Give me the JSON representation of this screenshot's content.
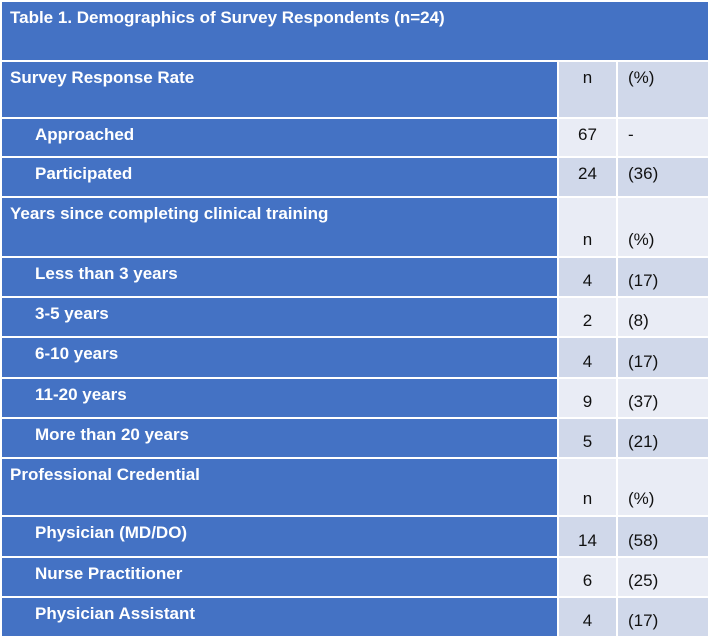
{
  "title": "Table 1. Demographics of Survey Respondents (n=24)",
  "sections": [
    {
      "heading": "Survey Response Rate",
      "n_header": "n",
      "pct_header": "(%)",
      "rows": [
        {
          "label": "Approached",
          "n": "67",
          "pct": "-"
        },
        {
          "label": "Participated",
          "n": "24",
          "pct": "(36)"
        }
      ]
    },
    {
      "heading": "Years since completing clinical training",
      "n_header": "n",
      "pct_header": "(%)",
      "rows": [
        {
          "label": "Less than 3 years",
          "n": "4",
          "pct": "(17)"
        },
        {
          "label": "3-5 years",
          "n": "2",
          "pct": "(8)"
        },
        {
          "label": "6-10 years",
          "n": "4",
          "pct": "(17)"
        },
        {
          "label": "11-20 years",
          "n": "9",
          "pct": "(37)"
        },
        {
          "label": "More than 20 years",
          "n": "5",
          "pct": "(21)"
        }
      ]
    },
    {
      "heading": "Professional Credential",
      "n_header": "n",
      "pct_header": "(%)",
      "rows": [
        {
          "label": "Physician (MD/DO)",
          "n": "14",
          "pct": "(58)"
        },
        {
          "label": "Nurse Practitioner",
          "n": "6",
          "pct": "(25)"
        },
        {
          "label": "Physician Assistant",
          "n": "4",
          "pct": "(17)"
        }
      ]
    }
  ]
}
